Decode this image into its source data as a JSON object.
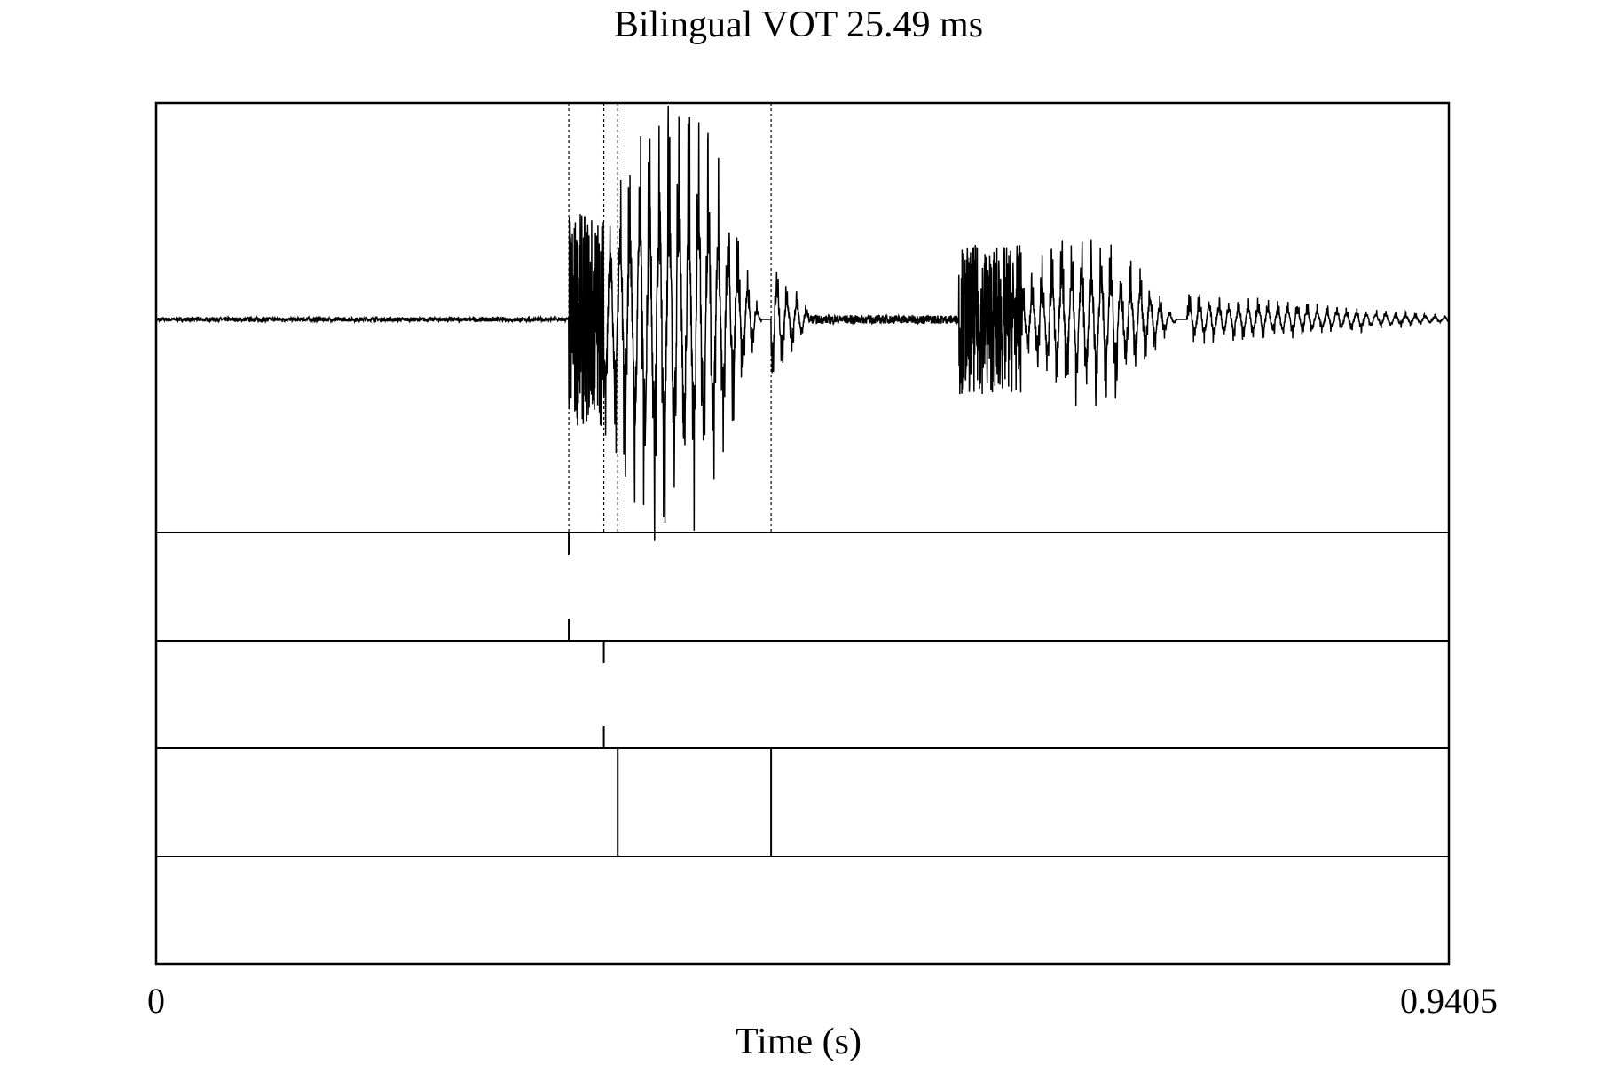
{
  "chart_data": {
    "type": "line",
    "title": "Bilingual VOT 25.49 ms",
    "xlabel": "Time (s)",
    "ylabel": "",
    "xlim": [
      0,
      0.9405
    ],
    "x_ticks": [
      "0",
      "0.9405"
    ],
    "grid": false,
    "tiers": 4,
    "boundaries_s": [
      {
        "tier": 1,
        "times": [
          0.3002
        ]
      },
      {
        "tier": 2,
        "times": [
          0.3257
        ]
      },
      {
        "tier": 3,
        "times": [
          0.3358,
          0.4474
        ]
      },
      {
        "tier": 4,
        "times": []
      }
    ],
    "segments": [
      {
        "type": "silence",
        "start": 0.0,
        "end": 0.3002,
        "amplitude": 0.01
      },
      {
        "type": "burst",
        "start": 0.3002,
        "end": 0.3257,
        "amplitude": 0.5
      },
      {
        "type": "vowel",
        "start": 0.3257,
        "end": 0.4474,
        "amplitude": 1.0
      },
      {
        "type": "decay",
        "start": 0.4474,
        "end": 0.475,
        "amplitude": 0.3
      },
      {
        "type": "silence",
        "start": 0.475,
        "end": 0.584,
        "amplitude": 0.02
      },
      {
        "type": "burst",
        "start": 0.584,
        "end": 0.63,
        "amplitude": 0.35
      },
      {
        "type": "vowel",
        "start": 0.63,
        "end": 0.75,
        "amplitude": 0.38
      },
      {
        "type": "decay",
        "start": 0.75,
        "end": 0.9405,
        "amplitude": 0.12
      }
    ],
    "waveform_color": "#000000"
  }
}
